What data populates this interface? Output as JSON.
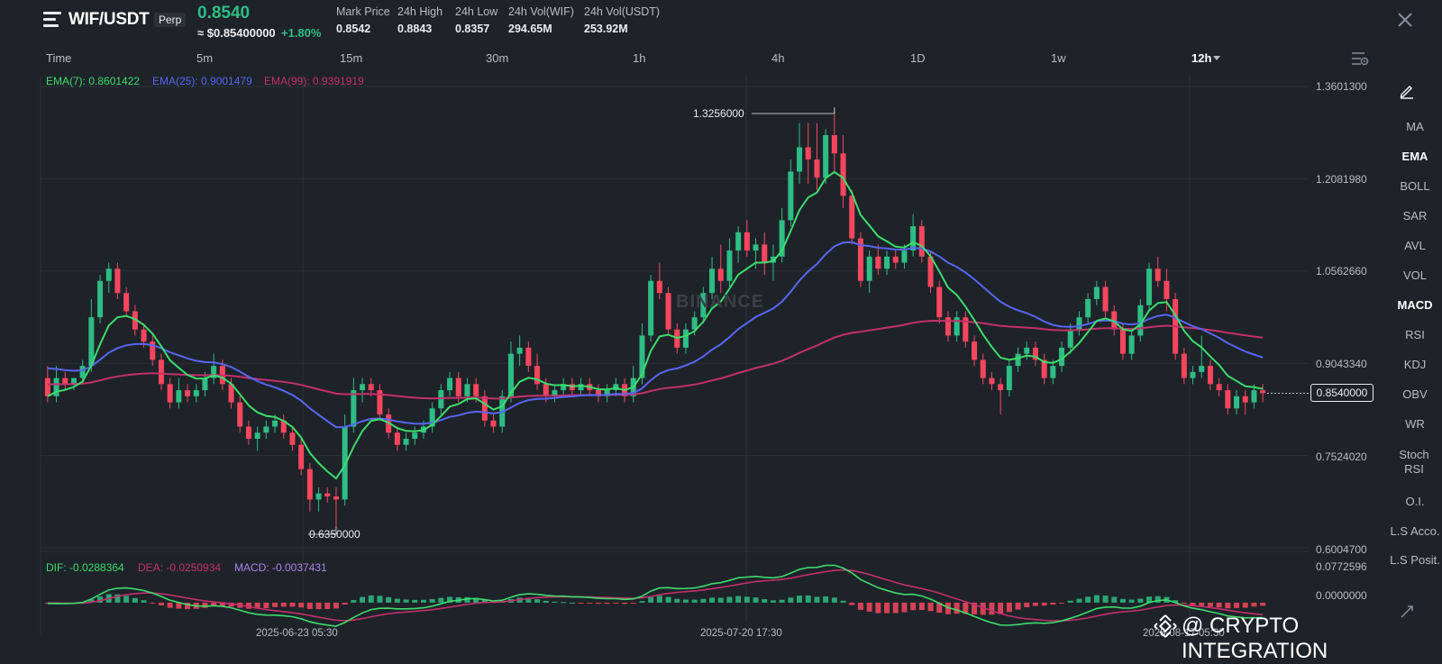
{
  "header": {
    "symbol": "WIF/USDT",
    "badge": "Perp",
    "last_price": "0.8540",
    "approx_price": "≈ $0.85400000",
    "change_pct": "+1.80%",
    "stats": [
      {
        "label": "Mark Price",
        "value": "0.8542"
      },
      {
        "label": "24h High",
        "value": "0.8843"
      },
      {
        "label": "24h Low",
        "value": "0.8357"
      },
      {
        "label": "24h Vol(WIF)",
        "value": "294.65M"
      },
      {
        "label": "24h Vol(USDT)",
        "value": "253.92M"
      }
    ]
  },
  "intervals": {
    "time": "Time",
    "i5m": "5m",
    "i15m": "15m",
    "i30m": "30m",
    "i1h": "1h",
    "i4h": "4h",
    "i1d": "1D",
    "i1w": "1w",
    "i12h": "12h"
  },
  "ema_legend": {
    "ema7": "EMA(7): 0.8601422",
    "ema25": "EMA(25): 0.9001479",
    "ema99": "EMA(99): 0.9391919"
  },
  "macd_legend": {
    "dif": "DIF: -0.0288364",
    "dea": "DEA: -0.0250934",
    "macd": "MACD: -0.0037431"
  },
  "price_axis": [
    "1.3601300",
    "1.2081980",
    "1.0562660",
    "0.9043340",
    "0.7524020",
    "0.6004700"
  ],
  "macd_axis": [
    "0.0772596",
    "0.0000000"
  ],
  "current_price_tag": "0.8540000",
  "high_label": "1.3256000",
  "low_label": "0.6350000",
  "watermark": "BINANCE",
  "time_labels": [
    "2025-06-23 05:30",
    "2025-07-20 17:30",
    "2025-08-17 05:30"
  ],
  "toolbar": [
    "MA",
    "EMA",
    "BOLL",
    "SAR",
    "AVL",
    "VOL",
    "MACD",
    "RSI",
    "KDJ",
    "OBV",
    "WR",
    "Stoch RSI",
    "O.I.",
    "L.S Acco.",
    "L.S Posit."
  ],
  "toolbar_active": [
    "EMA",
    "MACD"
  ],
  "brand": "@ CRYPTO INTEGRATION",
  "colors": {
    "up": "#2ebd85",
    "down": "#f6465d",
    "ema7": "#3ddc6b",
    "ema25": "#5865f2",
    "ema99": "#c2306b",
    "background": "#1e2329"
  },
  "chart_data": {
    "type": "candlestick",
    "price_range": [
      0.60047,
      1.36013
    ],
    "candles": [
      [
        0.88,
        0.9,
        0.84,
        0.85
      ],
      [
        0.85,
        0.9,
        0.84,
        0.88
      ],
      [
        0.88,
        0.89,
        0.86,
        0.87
      ],
      [
        0.87,
        0.88,
        0.86,
        0.88
      ],
      [
        0.88,
        0.91,
        0.87,
        0.9
      ],
      [
        0.9,
        1.01,
        0.89,
        0.98
      ],
      [
        0.98,
        1.05,
        0.97,
        1.04
      ],
      [
        1.04,
        1.07,
        1.02,
        1.06
      ],
      [
        1.06,
        1.07,
        1.01,
        1.02
      ],
      [
        1.02,
        1.03,
        0.98,
        0.99
      ],
      [
        0.99,
        1.0,
        0.95,
        0.96
      ],
      [
        0.96,
        0.97,
        0.93,
        0.94
      ],
      [
        0.94,
        0.95,
        0.9,
        0.91
      ],
      [
        0.91,
        0.92,
        0.86,
        0.87
      ],
      [
        0.87,
        0.88,
        0.83,
        0.84
      ],
      [
        0.84,
        0.88,
        0.83,
        0.86
      ],
      [
        0.86,
        0.87,
        0.84,
        0.85
      ],
      [
        0.85,
        0.87,
        0.84,
        0.86
      ],
      [
        0.86,
        0.89,
        0.85,
        0.88
      ],
      [
        0.88,
        0.92,
        0.87,
        0.9
      ],
      [
        0.9,
        0.91,
        0.86,
        0.87
      ],
      [
        0.87,
        0.88,
        0.83,
        0.84
      ],
      [
        0.84,
        0.85,
        0.79,
        0.8
      ],
      [
        0.8,
        0.81,
        0.77,
        0.78
      ],
      [
        0.78,
        0.8,
        0.76,
        0.79
      ],
      [
        0.79,
        0.81,
        0.78,
        0.8
      ],
      [
        0.8,
        0.82,
        0.79,
        0.81
      ],
      [
        0.81,
        0.82,
        0.78,
        0.79
      ],
      [
        0.79,
        0.8,
        0.76,
        0.77
      ],
      [
        0.77,
        0.78,
        0.72,
        0.73
      ],
      [
        0.73,
        0.74,
        0.66,
        0.68
      ],
      [
        0.68,
        0.7,
        0.66,
        0.69
      ],
      [
        0.69,
        0.7,
        0.675,
        0.685
      ],
      [
        0.685,
        0.7,
        0.635,
        0.68
      ],
      [
        0.68,
        0.82,
        0.67,
        0.8
      ],
      [
        0.8,
        0.88,
        0.79,
        0.86
      ],
      [
        0.86,
        0.88,
        0.84,
        0.87
      ],
      [
        0.87,
        0.88,
        0.85,
        0.86
      ],
      [
        0.86,
        0.87,
        0.81,
        0.82
      ],
      [
        0.82,
        0.83,
        0.78,
        0.79
      ],
      [
        0.79,
        0.8,
        0.76,
        0.77
      ],
      [
        0.77,
        0.79,
        0.76,
        0.78
      ],
      [
        0.78,
        0.8,
        0.77,
        0.79
      ],
      [
        0.79,
        0.81,
        0.78,
        0.8
      ],
      [
        0.8,
        0.84,
        0.79,
        0.83
      ],
      [
        0.83,
        0.87,
        0.82,
        0.86
      ],
      [
        0.86,
        0.89,
        0.85,
        0.88
      ],
      [
        0.88,
        0.89,
        0.84,
        0.85
      ],
      [
        0.85,
        0.88,
        0.84,
        0.87
      ],
      [
        0.87,
        0.88,
        0.84,
        0.85
      ],
      [
        0.85,
        0.86,
        0.8,
        0.81
      ],
      [
        0.81,
        0.82,
        0.79,
        0.8
      ],
      [
        0.8,
        0.86,
        0.79,
        0.85
      ],
      [
        0.85,
        0.94,
        0.84,
        0.92
      ],
      [
        0.92,
        0.95,
        0.9,
        0.93
      ],
      [
        0.93,
        0.94,
        0.89,
        0.9
      ],
      [
        0.9,
        0.92,
        0.86,
        0.87
      ],
      [
        0.87,
        0.88,
        0.84,
        0.85
      ],
      [
        0.85,
        0.87,
        0.84,
        0.86
      ],
      [
        0.86,
        0.88,
        0.85,
        0.87
      ],
      [
        0.87,
        0.88,
        0.85,
        0.86
      ],
      [
        0.86,
        0.88,
        0.85,
        0.87
      ],
      [
        0.87,
        0.88,
        0.85,
        0.86
      ],
      [
        0.86,
        0.87,
        0.84,
        0.85
      ],
      [
        0.85,
        0.87,
        0.84,
        0.86
      ],
      [
        0.86,
        0.88,
        0.85,
        0.87
      ],
      [
        0.87,
        0.88,
        0.84,
        0.85
      ],
      [
        0.85,
        0.9,
        0.84,
        0.88
      ],
      [
        0.88,
        0.97,
        0.87,
        0.95
      ],
      [
        0.95,
        1.05,
        0.94,
        1.04
      ],
      [
        1.04,
        1.07,
        1.01,
        1.02
      ],
      [
        1.02,
        1.03,
        0.95,
        0.96
      ],
      [
        0.96,
        0.97,
        0.92,
        0.93
      ],
      [
        0.93,
        0.97,
        0.92,
        0.96
      ],
      [
        0.96,
        0.99,
        0.95,
        0.98
      ],
      [
        0.98,
        1.03,
        0.97,
        1.02
      ],
      [
        1.02,
        1.08,
        1.01,
        1.06
      ],
      [
        1.06,
        1.1,
        1.02,
        1.04
      ],
      [
        1.04,
        1.11,
        1.03,
        1.09
      ],
      [
        1.09,
        1.13,
        1.07,
        1.12
      ],
      [
        1.12,
        1.14,
        1.08,
        1.09
      ],
      [
        1.09,
        1.11,
        1.06,
        1.1
      ],
      [
        1.1,
        1.12,
        1.05,
        1.07
      ],
      [
        1.07,
        1.1,
        1.04,
        1.08
      ],
      [
        1.08,
        1.16,
        1.07,
        1.14
      ],
      [
        1.14,
        1.24,
        1.13,
        1.22
      ],
      [
        1.22,
        1.3,
        1.2,
        1.26
      ],
      [
        1.26,
        1.3,
        1.2,
        1.24
      ],
      [
        1.24,
        1.3,
        1.19,
        1.21
      ],
      [
        1.21,
        1.29,
        1.2,
        1.28
      ],
      [
        1.28,
        1.3256,
        1.22,
        1.25
      ],
      [
        1.25,
        1.28,
        1.16,
        1.18
      ],
      [
        1.18,
        1.19,
        1.1,
        1.11
      ],
      [
        1.11,
        1.12,
        1.03,
        1.04
      ],
      [
        1.04,
        1.09,
        1.02,
        1.08
      ],
      [
        1.08,
        1.1,
        1.05,
        1.06
      ],
      [
        1.06,
        1.09,
        1.05,
        1.08
      ],
      [
        1.08,
        1.09,
        1.06,
        1.07
      ],
      [
        1.07,
        1.1,
        1.06,
        1.09
      ],
      [
        1.09,
        1.15,
        1.08,
        1.13
      ],
      [
        1.13,
        1.14,
        1.07,
        1.08
      ],
      [
        1.08,
        1.09,
        1.02,
        1.03
      ],
      [
        1.03,
        1.04,
        0.97,
        0.98
      ],
      [
        0.98,
        0.99,
        0.94,
        0.95
      ],
      [
        0.95,
        0.99,
        0.94,
        0.98
      ],
      [
        0.98,
        0.99,
        0.93,
        0.94
      ],
      [
        0.94,
        0.95,
        0.9,
        0.91
      ],
      [
        0.91,
        0.92,
        0.87,
        0.88
      ],
      [
        0.88,
        0.89,
        0.86,
        0.87
      ],
      [
        0.87,
        0.88,
        0.82,
        0.86
      ],
      [
        0.86,
        0.91,
        0.85,
        0.9
      ],
      [
        0.9,
        0.93,
        0.89,
        0.92
      ],
      [
        0.92,
        0.94,
        0.91,
        0.93
      ],
      [
        0.93,
        0.94,
        0.9,
        0.91
      ],
      [
        0.91,
        0.92,
        0.87,
        0.88
      ],
      [
        0.88,
        0.91,
        0.87,
        0.9
      ],
      [
        0.9,
        0.94,
        0.89,
        0.93
      ],
      [
        0.93,
        0.97,
        0.92,
        0.96
      ],
      [
        0.96,
        0.99,
        0.95,
        0.98
      ],
      [
        0.98,
        1.02,
        0.97,
        1.01
      ],
      [
        1.01,
        1.04,
        1.0,
        1.03
      ],
      [
        1.03,
        1.04,
        0.98,
        0.99
      ],
      [
        0.99,
        1.0,
        0.95,
        0.96
      ],
      [
        0.96,
        0.97,
        0.91,
        0.92
      ],
      [
        0.92,
        0.96,
        0.91,
        0.95
      ],
      [
        0.95,
        1.01,
        0.94,
        1.0
      ],
      [
        1.0,
        1.07,
        0.99,
        1.06
      ],
      [
        1.06,
        1.08,
        1.03,
        1.04
      ],
      [
        1.04,
        1.06,
        0.99,
        1.01
      ],
      [
        1.01,
        1.02,
        0.91,
        0.92
      ],
      [
        0.92,
        0.93,
        0.87,
        0.88
      ],
      [
        0.88,
        0.9,
        0.87,
        0.89
      ],
      [
        0.89,
        0.95,
        0.88,
        0.9
      ],
      [
        0.9,
        0.91,
        0.86,
        0.87
      ],
      [
        0.87,
        0.88,
        0.85,
        0.86
      ],
      [
        0.86,
        0.87,
        0.82,
        0.83
      ],
      [
        0.83,
        0.86,
        0.82,
        0.85
      ],
      [
        0.85,
        0.86,
        0.82,
        0.84
      ],
      [
        0.84,
        0.87,
        0.83,
        0.86
      ],
      [
        0.86,
        0.87,
        0.84,
        0.855
      ]
    ],
    "macd_range": [
      -0.04,
      0.0772596
    ]
  }
}
